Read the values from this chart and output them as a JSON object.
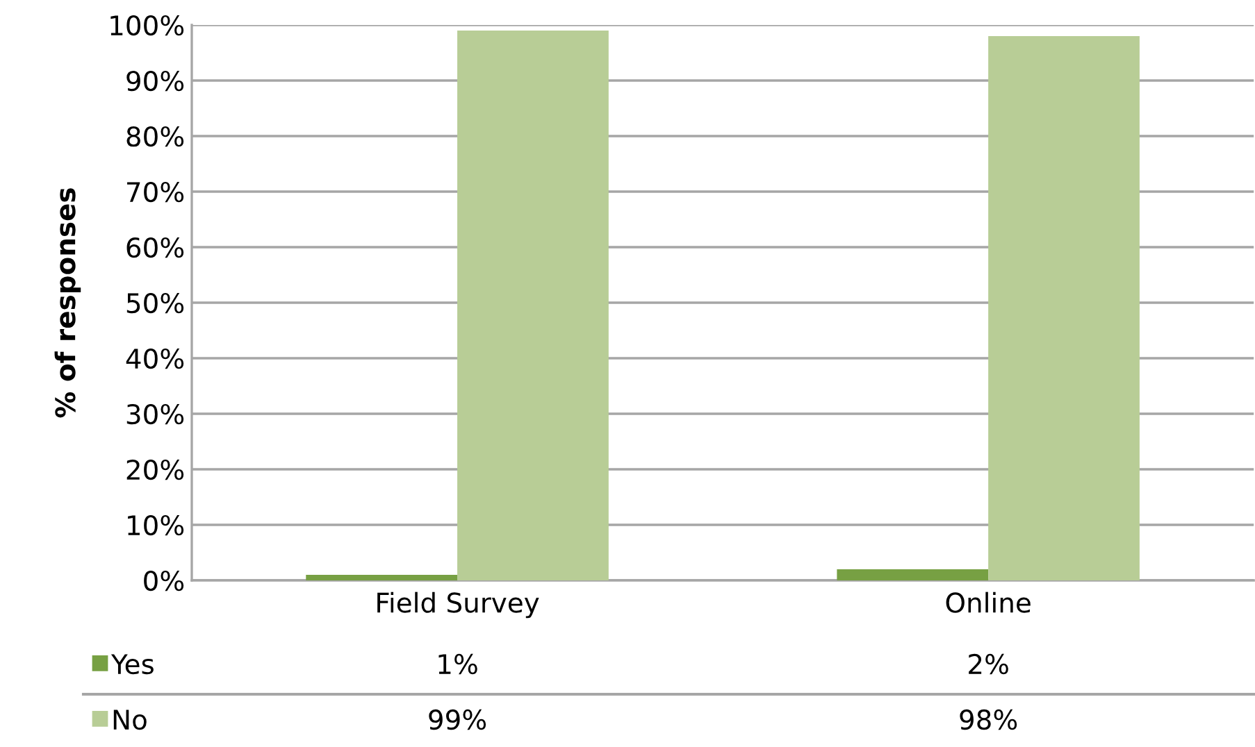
{
  "chart_data": {
    "type": "bar",
    "ylabel": "% of responses",
    "categories": [
      "Field Survey",
      "Online"
    ],
    "series": [
      {
        "name": "Yes",
        "color": "#77a043",
        "values": [
          1,
          2
        ],
        "value_labels": [
          "1%",
          "2%"
        ]
      },
      {
        "name": "No",
        "color": "#b8cd96",
        "values": [
          99,
          98
        ],
        "value_labels": [
          "99%",
          "98%"
        ]
      }
    ],
    "ylim": [
      0,
      100
    ],
    "yticks": [
      {
        "value": 0,
        "label": "0%"
      },
      {
        "value": 10,
        "label": "10%"
      },
      {
        "value": 20,
        "label": "20%"
      },
      {
        "value": 30,
        "label": "30%"
      },
      {
        "value": 40,
        "label": "40%"
      },
      {
        "value": 50,
        "label": "50%"
      },
      {
        "value": 60,
        "label": "60%"
      },
      {
        "value": 70,
        "label": "70%"
      },
      {
        "value": 80,
        "label": "80%"
      },
      {
        "value": 90,
        "label": "90%"
      },
      {
        "value": 100,
        "label": "100%"
      }
    ],
    "grid": "y",
    "legend": "bottom"
  }
}
